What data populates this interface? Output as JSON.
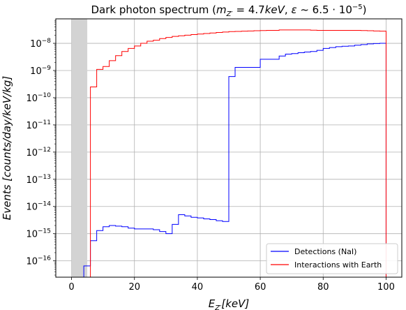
{
  "chart_data": {
    "type": "line",
    "title": "Dark photon spectrum (m_{Z'} = 4.7keV, ε ~ 6.5·10^{-5})",
    "xlabel": "E_{Z'} [keV]",
    "ylabel": "Events [counts/day/keV/kg]",
    "xlim": [
      -5,
      105
    ],
    "ylim_log10": [
      -16.6,
      -7.1
    ],
    "yscale": "log",
    "grid": true,
    "legend_position": "lower-right",
    "x_ticks": [
      0,
      20,
      40,
      60,
      80,
      100
    ],
    "y_ticks_exp": [
      -16,
      -15,
      -14,
      -13,
      -12,
      -11,
      -10,
      -9,
      -8
    ],
    "shaded_region": {
      "x_start": 0,
      "x_end": 5,
      "color": "#d3d3d3"
    },
    "series": [
      {
        "name": "Detections (NaI)",
        "color": "#0000ff",
        "step": "post",
        "end_x": 100,
        "x": [
          3.9,
          6,
          8,
          10,
          12,
          14,
          16,
          18,
          20,
          22,
          24,
          26,
          28,
          30,
          32,
          34,
          36,
          38,
          40,
          42,
          44,
          46,
          48,
          50,
          52,
          54,
          56,
          58,
          60,
          62,
          64,
          66,
          68,
          70,
          72,
          74,
          76,
          78,
          80,
          82,
          84,
          86,
          88,
          90,
          92,
          94,
          96,
          98
        ],
        "y": [
          6.5e-17,
          5.5e-16,
          1.3e-15,
          1.8e-15,
          2e-15,
          1.9e-15,
          1.8e-15,
          1.6e-15,
          1.5e-15,
          1.5e-15,
          1.5e-15,
          1.4e-15,
          1.2e-15,
          1e-15,
          2.2e-15,
          5e-15,
          4.5e-15,
          4e-15,
          3.8e-15,
          3.5e-15,
          3.3e-15,
          3e-15,
          2.8e-15,
          6e-10,
          1.3e-09,
          1.3e-09,
          1.3e-09,
          1.3e-09,
          2.6e-09,
          2.6e-09,
          2.6e-09,
          3.4e-09,
          4e-09,
          4.2e-09,
          4.5e-09,
          4.8e-09,
          5e-09,
          5.5e-09,
          6.5e-09,
          7e-09,
          7.5e-09,
          7.8e-09,
          8e-09,
          8.5e-09,
          9e-09,
          9.5e-09,
          9.8e-09,
          1e-08
        ]
      },
      {
        "name": "Interactions with Earth",
        "color": "#ff0000",
        "step": "post",
        "end_x": 100,
        "x": [
          6,
          8,
          10,
          12,
          14,
          16,
          18,
          20,
          22,
          24,
          26,
          28,
          30,
          32,
          34,
          36,
          38,
          40,
          42,
          44,
          46,
          48,
          50,
          52,
          54,
          56,
          58,
          60,
          62,
          64,
          66,
          68,
          70,
          72,
          74,
          76,
          78,
          80,
          82,
          84,
          86,
          88,
          90,
          92,
          94,
          96,
          98
        ],
        "y": [
          2.5e-10,
          1.1e-09,
          1.4e-09,
          2.3e-09,
          3.5e-09,
          5e-09,
          6.5e-09,
          8e-09,
          1e-08,
          1.2e-08,
          1.3e-08,
          1.5e-08,
          1.65e-08,
          1.8e-08,
          1.9e-08,
          2e-08,
          2.1e-08,
          2.2e-08,
          2.3e-08,
          2.4e-08,
          2.5e-08,
          2.6e-08,
          2.7e-08,
          2.75e-08,
          2.8e-08,
          2.85e-08,
          2.9e-08,
          2.95e-08,
          3e-08,
          3e-08,
          3.1e-08,
          3.1e-08,
          3.1e-08,
          3.1e-08,
          3.1e-08,
          3.05e-08,
          3e-08,
          3e-08,
          3e-08,
          3e-08,
          3e-08,
          3e-08,
          3e-08,
          2.95e-08,
          2.9e-08,
          2.85e-08,
          2.8e-08
        ]
      }
    ]
  }
}
